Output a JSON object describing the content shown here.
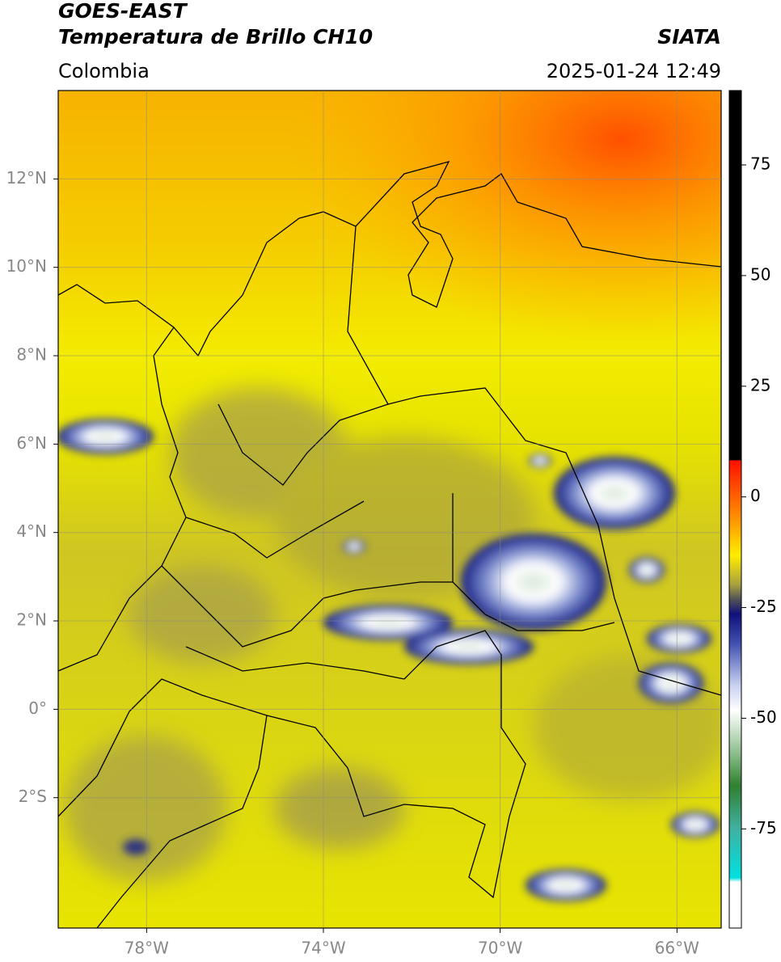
{
  "header": {
    "title": "GOES-EAST",
    "subtitle": "Temperatura de Brillo CH10",
    "region": "Colombia",
    "source": "SIATA",
    "datetime": "2025-01-24 12:49"
  },
  "map": {
    "lonlim": [
      -80.0,
      -65.0
    ],
    "latlim": [
      -4.95,
      14.0
    ],
    "lon_ticks": [
      {
        "value": -78,
        "label": "78°W"
      },
      {
        "value": -74,
        "label": "74°W"
      },
      {
        "value": -70,
        "label": "70°W"
      },
      {
        "value": -66,
        "label": "66°W"
      }
    ],
    "lat_ticks": [
      {
        "value": 12,
        "label": "12°N"
      },
      {
        "value": 10,
        "label": "10°N"
      },
      {
        "value": 8,
        "label": "8°N"
      },
      {
        "value": 6,
        "label": "6°N"
      },
      {
        "value": 4,
        "label": "4°N"
      },
      {
        "value": 2,
        "label": "2°N"
      },
      {
        "value": 0,
        "label": "0°"
      },
      {
        "value": -2,
        "label": "2°S"
      }
    ]
  },
  "colorbar": {
    "lim": [
      -97.4,
      91.8
    ],
    "ticks": [
      75,
      50,
      25,
      0,
      -25,
      -50,
      -75
    ]
  }
}
